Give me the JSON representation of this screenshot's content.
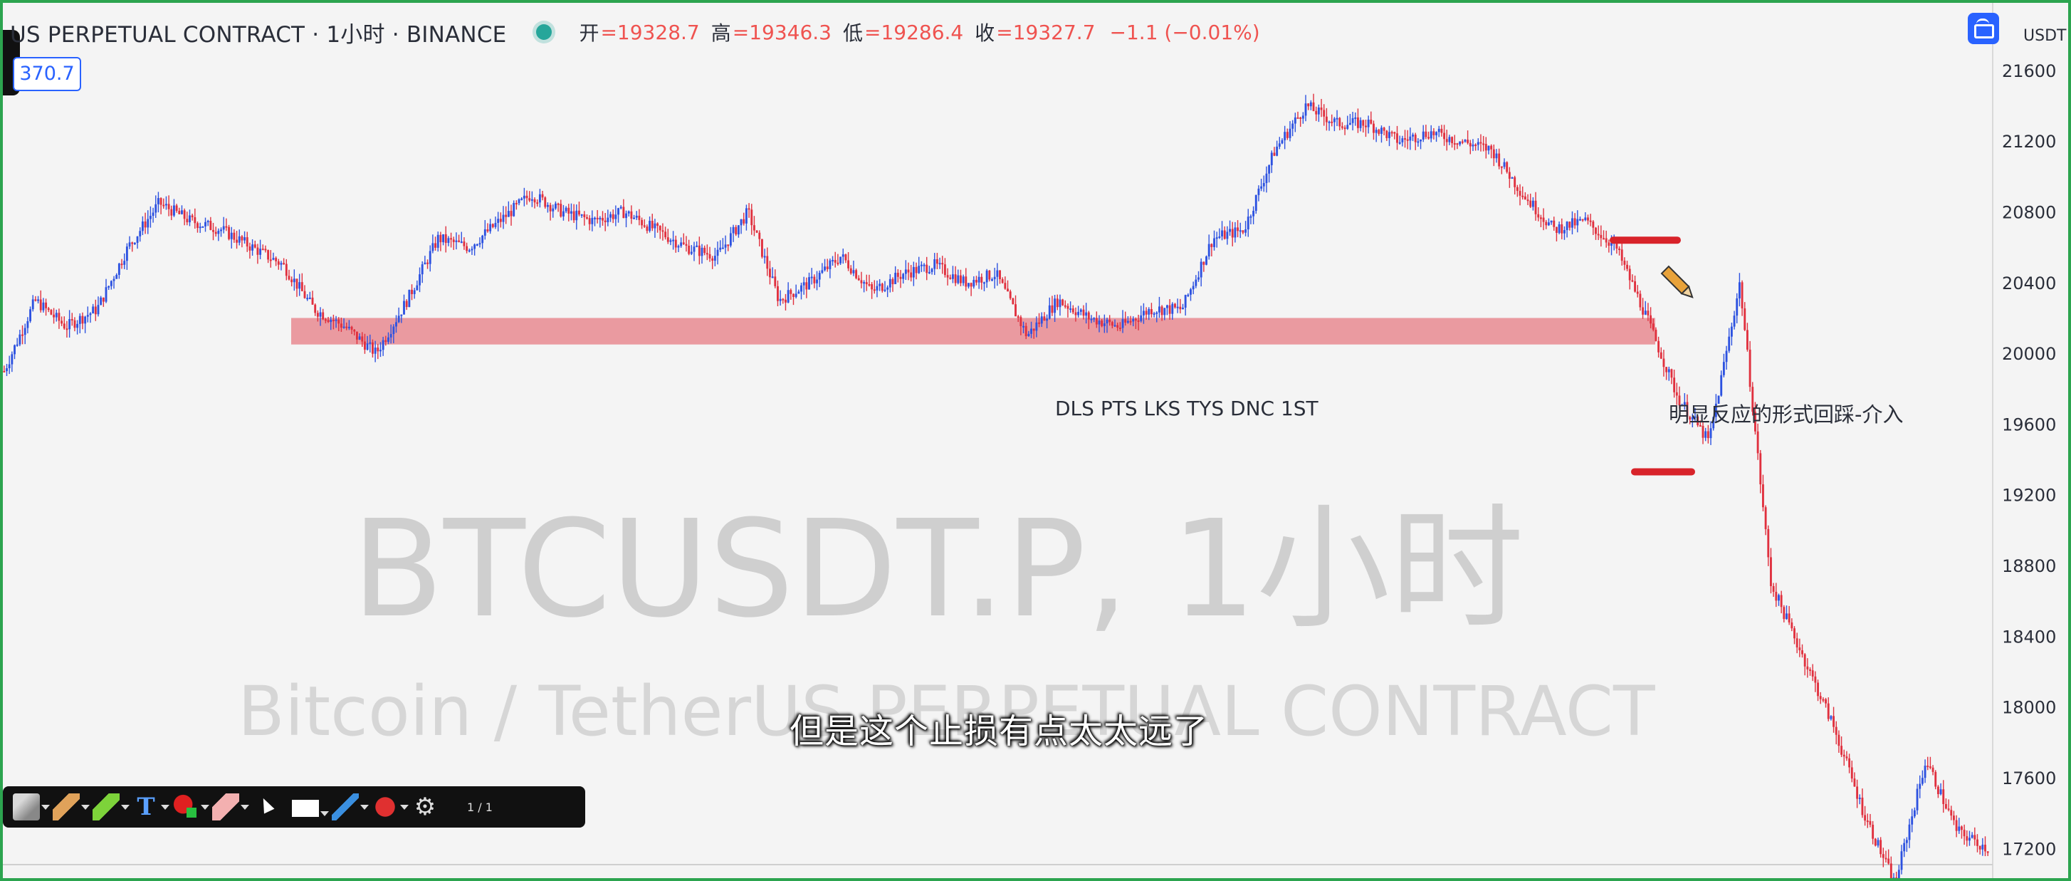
{
  "header": {
    "symbol_title": "US PERPETUAL CONTRACT · 1小时 · BINANCE",
    "open_label": "开",
    "open": "=19328.7",
    "high_label": "高",
    "high": "=19346.3",
    "low_label": "低",
    "low": "=19286.4",
    "close_label": "收",
    "close": "=19327.7",
    "change": "−1.1 (−0.01%)",
    "price_box": "370.7"
  },
  "scale": {
    "currency": "USDT"
  },
  "watermark": {
    "line1": "BTCUSDT.P, 1小时",
    "line2": "Bitcoin / TetherUS PERPETUAL CONTRACT"
  },
  "annotations": {
    "zone_label": "DLS PTS LKS TYS DNC 1ST",
    "note": "明显反应的形式回踩-介入"
  },
  "subtitle": "但是这个止损有点太太远了",
  "toolbar": {
    "page": "1 / 1"
  },
  "colors": {
    "up": "#2d52e0",
    "down": "#e0303e",
    "zone": "#e88a90",
    "marker": "#d8232a"
  },
  "chart_data": {
    "type": "candlestick",
    "timeframe": "1小时",
    "ylim": [
      17000,
      21700
    ],
    "y_ticks": [
      21600,
      21200,
      20800,
      20400,
      20000,
      19600,
      19200,
      18800,
      18400,
      18000,
      17600,
      17200
    ],
    "support_zone": {
      "from": 20050,
      "to": 20200
    },
    "stop_marker_high": 20640,
    "stop_marker_low": 19330,
    "close_path": [
      [
        0,
        19900
      ],
      [
        1,
        20300
      ],
      [
        2,
        20150
      ],
      [
        3,
        20250
      ],
      [
        4,
        20600
      ],
      [
        5,
        20850
      ],
      [
        6,
        20750
      ],
      [
        7,
        20700
      ],
      [
        8,
        20600
      ],
      [
        9,
        20500
      ],
      [
        10,
        20250
      ],
      [
        11,
        20150
      ],
      [
        12,
        20000
      ],
      [
        13,
        20300
      ],
      [
        14,
        20650
      ],
      [
        15,
        20600
      ],
      [
        16,
        20750
      ],
      [
        17,
        20900
      ],
      [
        18,
        20800
      ],
      [
        19,
        20750
      ],
      [
        20,
        20800
      ],
      [
        21,
        20700
      ],
      [
        22,
        20600
      ],
      [
        23,
        20550
      ],
      [
        24,
        20800
      ],
      [
        25,
        20300
      ],
      [
        26,
        20400
      ],
      [
        27,
        20550
      ],
      [
        28,
        20350
      ],
      [
        29,
        20450
      ],
      [
        30,
        20500
      ],
      [
        31,
        20400
      ],
      [
        32,
        20450
      ],
      [
        33,
        20100
      ],
      [
        34,
        20300
      ],
      [
        35,
        20200
      ],
      [
        36,
        20150
      ],
      [
        37,
        20250
      ],
      [
        38,
        20250
      ],
      [
        39,
        20650
      ],
      [
        40,
        20700
      ],
      [
        41,
        21150
      ],
      [
        42,
        21400
      ],
      [
        43,
        21300
      ],
      [
        44,
        21300
      ],
      [
        45,
        21200
      ],
      [
        46,
        21250
      ],
      [
        47,
        21200
      ],
      [
        48,
        21150
      ],
      [
        49,
        20900
      ],
      [
        50,
        20700
      ],
      [
        51,
        20750
      ],
      [
        52,
        20600
      ],
      [
        53,
        20200
      ],
      [
        54,
        19750
      ],
      [
        55,
        19500
      ],
      [
        56,
        20400
      ],
      [
        57,
        18700
      ],
      [
        58,
        18300
      ],
      [
        59,
        17900
      ],
      [
        60,
        17400
      ],
      [
        61,
        17000
      ],
      [
        62,
        17700
      ],
      [
        63,
        17300
      ],
      [
        64,
        17200
      ]
    ]
  }
}
